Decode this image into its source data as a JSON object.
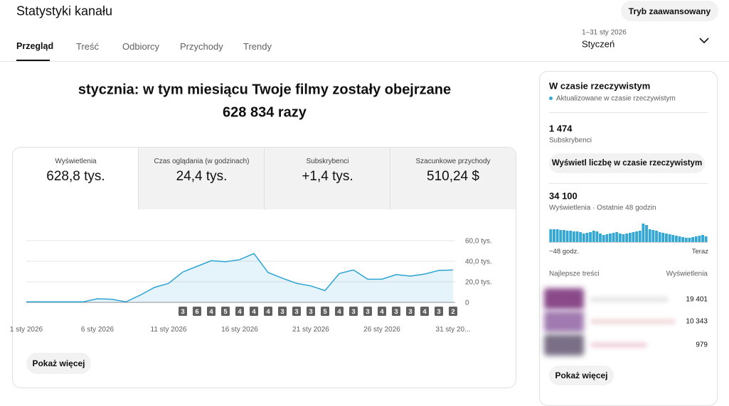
{
  "header": {
    "title": "Statystyki kanału",
    "advanced_button": "Tryb zaawansowany",
    "tabs": [
      "Przegląd",
      "Treść",
      "Odbiorcy",
      "Przychody",
      "Trendy"
    ],
    "date_range": "1–31 sty 2026",
    "period": "Styczeń"
  },
  "headline": {
    "line1": "stycznia: w tym miesiącu Twoje filmy zostały obejrzane",
    "line2": "628 834 razy"
  },
  "metrics": [
    {
      "label": "Wyświetlenia",
      "value": "628,8 tys."
    },
    {
      "label": "Czas oglądania (w godzinach)",
      "value": "24,4 tys."
    },
    {
      "label": "Subskrybenci",
      "value": "+1,4 tys."
    },
    {
      "label": "Szacunkowe przychody",
      "value": "510,24 $"
    }
  ],
  "chart_data": [
    {
      "type": "line",
      "categories": [
        "1 sty 2026",
        null,
        null,
        null,
        null,
        "6 sty 2026",
        null,
        null,
        null,
        null,
        "11 sty 2026",
        null,
        null,
        null,
        null,
        "16 sty 2026",
        null,
        null,
        null,
        null,
        "21 sty 2026",
        null,
        null,
        null,
        null,
        "26 sty 2026",
        null,
        null,
        null,
        null,
        "31 sty 20..."
      ],
      "values": [
        500,
        500,
        500,
        500,
        500,
        3500,
        3000,
        500,
        7000,
        14500,
        18500,
        29500,
        35000,
        40500,
        39500,
        41500,
        47500,
        29000,
        23500,
        18500,
        16000,
        11500,
        28000,
        31500,
        22500,
        22500,
        27000,
        25500,
        27500,
        31000,
        31500
      ],
      "upload_counts": [
        null,
        null,
        null,
        null,
        null,
        null,
        null,
        null,
        null,
        null,
        null,
        3,
        6,
        4,
        5,
        4,
        4,
        4,
        3,
        3,
        3,
        5,
        4,
        3,
        3,
        4,
        3,
        3,
        4,
        3,
        2
      ],
      "color": "#2ba3d3",
      "ylim": [
        0,
        60000
      ],
      "yticks": [
        0,
        {
          "value": 20000,
          "label": "20,0 tys."
        },
        {
          "value": 40000,
          "label": "40,0 tys."
        },
        {
          "value": 60000,
          "label": "60,0 tys."
        }
      ],
      "grid": true,
      "show_more": "Pokaż więcej"
    },
    {
      "type": "bar",
      "values": [
        954,
        954,
        954,
        901,
        901,
        848,
        848,
        795,
        795,
        742,
        636,
        689,
        742,
        848,
        795,
        636,
        530,
        583,
        636,
        689,
        742,
        636,
        583,
        636,
        689,
        742,
        795,
        848,
        1378,
        1272,
        954,
        901,
        848,
        742,
        689,
        636,
        583,
        530,
        477,
        424,
        371,
        318,
        318,
        371,
        424,
        477,
        530,
        424
      ],
      "color": "#35a7d3",
      "x_labels": [
        "−48 godz.",
        "Teraz"
      ]
    }
  ],
  "realtime": {
    "title": "W czasie rzeczywistym",
    "status": "Aktualizowane w czasie rzeczywistym",
    "subscribers": "1 474",
    "subscribers_label": "Subskrybenci",
    "button": "Wyświetl liczbę w czasie rzeczywistym",
    "views": "34 100",
    "views_label": "Wyświetlenia · Ostatnie 48 godzin",
    "top_content_header": [
      "Najlepsze treści",
      "Wyświetlenia"
    ],
    "top_content": [
      "19 401",
      "10 343",
      "979"
    ],
    "show_more": "Pokaż więcej"
  }
}
